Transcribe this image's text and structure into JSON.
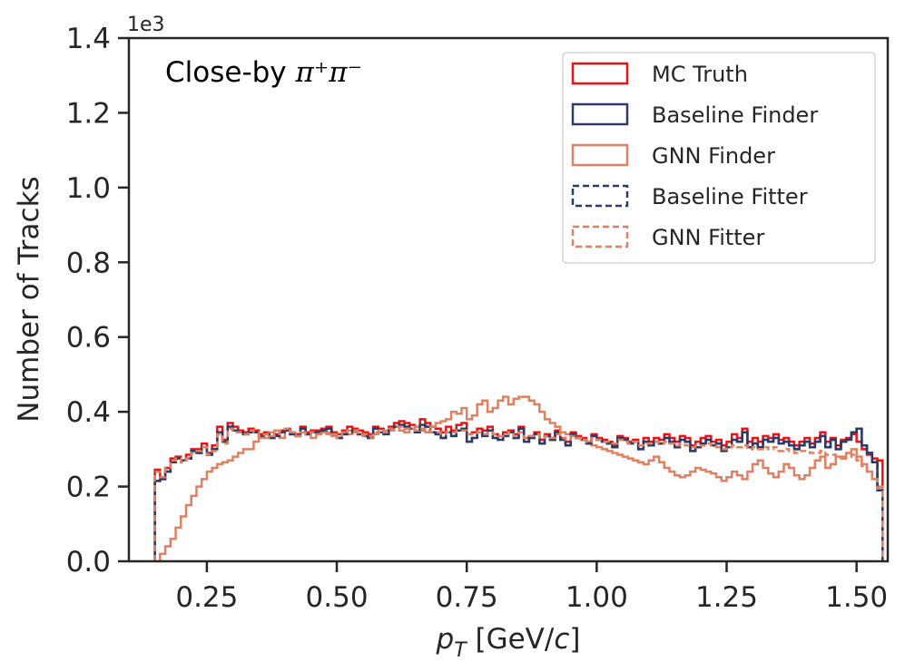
{
  "chart_data": {
    "type": "step-histogram",
    "title": "",
    "annotation_prefix": "Close-by ",
    "annotation_math": "π⁺π⁻",
    "xlabel_base": "p",
    "xlabel_sub": "T",
    "xlabel_unit_prefix": " [GeV/",
    "xlabel_unit_var": "c",
    "xlabel_unit_suffix": "]",
    "ylabel": "Number of Tracks",
    "y_offset_text": "1e3",
    "xlim": [
      0.1,
      1.56
    ],
    "ylim": [
      0,
      1400
    ],
    "x_ticks": [
      0.25,
      0.5,
      0.75,
      1.0,
      1.25,
      1.5
    ],
    "x_tick_labels": [
      "0.25",
      "0.50",
      "0.75",
      "1.00",
      "1.25",
      "1.50"
    ],
    "y_ticks": [
      0,
      200,
      400,
      600,
      800,
      1000,
      1200,
      1400
    ],
    "y_tick_labels": [
      "0.0",
      "0.2",
      "0.4",
      "0.6",
      "0.8",
      "1.0",
      "1.2",
      "1.4"
    ],
    "bin_start": 0.15,
    "bin_end": 1.5,
    "bin_width": 0.01,
    "legend_position": "top-right",
    "series": [
      {
        "name": "MC Truth",
        "color": "#ee1111",
        "dashed": false,
        "width": 2.5,
        "values": [
          245,
          225,
          250,
          275,
          280,
          270,
          285,
          300,
          300,
          315,
          290,
          310,
          360,
          325,
          370,
          360,
          350,
          345,
          355,
          350,
          340,
          345,
          335,
          340,
          350,
          355,
          345,
          340,
          360,
          345,
          350,
          350,
          355,
          360,
          345,
          340,
          350,
          360,
          355,
          350,
          345,
          340,
          360,
          355,
          350,
          360,
          370,
          375,
          370,
          365,
          360,
          380,
          370,
          360,
          355,
          345,
          360,
          350,
          365,
          370,
          340,
          345,
          355,
          350,
          360,
          340,
          335,
          345,
          350,
          340,
          360,
          330,
          335,
          345,
          325,
          340,
          330,
          350,
          330,
          320,
          345,
          335,
          330,
          320,
          340,
          330,
          325,
          320,
          310,
          335,
          330,
          320,
          325,
          310,
          330,
          320,
          330,
          325,
          340,
          330,
          320,
          335,
          330,
          310,
          320,
          330,
          335,
          320,
          325,
          310,
          320,
          340,
          330,
          355,
          320,
          330,
          320,
          335,
          330,
          340,
          325,
          330,
          320,
          310,
          320,
          330,
          315,
          330,
          345,
          320,
          330,
          310,
          325,
          330,
          340,
          320,
          300,
          285,
          275,
          270
        ]
      },
      {
        "name": "Baseline Finder",
        "color": "#2b3a67",
        "dashed": false,
        "width": 2.5,
        "values": [
          215,
          220,
          240,
          265,
          275,
          270,
          275,
          295,
          290,
          305,
          285,
          300,
          345,
          320,
          360,
          350,
          345,
          340,
          345,
          345,
          335,
          340,
          330,
          335,
          345,
          350,
          340,
          335,
          355,
          340,
          345,
          345,
          350,
          355,
          340,
          330,
          340,
          350,
          345,
          340,
          335,
          330,
          355,
          345,
          340,
          350,
          360,
          365,
          360,
          355,
          345,
          365,
          360,
          345,
          340,
          330,
          345,
          335,
          350,
          355,
          320,
          330,
          345,
          335,
          350,
          330,
          325,
          335,
          345,
          330,
          355,
          320,
          330,
          340,
          315,
          335,
          325,
          345,
          325,
          310,
          340,
          330,
          325,
          315,
          335,
          325,
          320,
          315,
          305,
          330,
          325,
          315,
          320,
          300,
          320,
          310,
          320,
          315,
          330,
          320,
          305,
          325,
          320,
          295,
          305,
          315,
          325,
          310,
          315,
          295,
          305,
          325,
          320,
          345,
          305,
          315,
          305,
          325,
          320,
          330,
          315,
          320,
          310,
          300,
          310,
          320,
          305,
          320,
          335,
          305,
          325,
          300,
          320,
          325,
          345,
          355,
          310,
          290,
          265,
          190
        ]
      },
      {
        "name": "GNN Finder",
        "color": "#e08060",
        "dashed": false,
        "width": 2.5,
        "values": [
          0,
          20,
          40,
          60,
          90,
          120,
          150,
          175,
          200,
          220,
          240,
          250,
          260,
          265,
          270,
          280,
          290,
          300,
          300,
          320,
          330,
          330,
          345,
          350,
          330,
          350,
          340,
          335,
          345,
          340,
          330,
          340,
          345,
          340,
          335,
          330,
          345,
          340,
          350,
          340,
          335,
          330,
          340,
          345,
          350,
          355,
          360,
          350,
          345,
          355,
          360,
          350,
          345,
          360,
          370,
          375,
          380,
          400,
          395,
          410,
          380,
          390,
          420,
          430,
          400,
          410,
          430,
          440,
          420,
          435,
          440,
          440,
          430,
          420,
          400,
          380,
          370,
          360,
          345,
          340,
          335,
          330,
          325,
          320,
          310,
          305,
          300,
          295,
          290,
          285,
          280,
          275,
          270,
          265,
          260,
          270,
          280,
          265,
          250,
          240,
          230,
          225,
          230,
          240,
          250,
          245,
          240,
          235,
          225,
          215,
          225,
          240,
          230,
          220,
          240,
          260,
          270,
          250,
          235,
          225,
          240,
          260,
          250,
          230,
          220,
          230,
          250,
          270,
          280,
          250,
          260,
          280,
          275,
          290,
          300,
          280,
          260,
          240,
          220,
          200
        ]
      },
      {
        "name": "Baseline Fitter",
        "color": "#2b3a67",
        "dashed": true,
        "width": 2.5,
        "values": [
          215,
          220,
          240,
          265,
          275,
          270,
          275,
          295,
          290,
          305,
          285,
          300,
          345,
          320,
          360,
          350,
          345,
          340,
          345,
          345,
          335,
          340,
          330,
          335,
          345,
          350,
          340,
          335,
          355,
          340,
          345,
          345,
          350,
          355,
          340,
          330,
          340,
          350,
          345,
          340,
          335,
          330,
          355,
          345,
          340,
          350,
          360,
          365,
          360,
          355,
          345,
          365,
          360,
          345,
          340,
          330,
          345,
          335,
          350,
          355,
          320,
          330,
          345,
          335,
          350,
          330,
          325,
          335,
          345,
          330,
          355,
          320,
          330,
          340,
          315,
          335,
          325,
          345,
          325,
          310,
          340,
          330,
          325,
          315,
          335,
          325,
          320,
          315,
          305,
          330,
          325,
          315,
          320,
          300,
          320,
          310,
          320,
          315,
          330,
          320,
          305,
          325,
          320,
          295,
          305,
          315,
          325,
          310,
          315,
          295,
          305,
          325,
          320,
          345,
          305,
          315,
          305,
          325,
          320,
          330,
          315,
          320,
          310,
          300,
          310,
          320,
          305,
          320,
          335,
          305,
          325,
          300,
          320,
          325,
          345,
          355,
          310,
          290,
          265,
          190
        ]
      },
      {
        "name": "GNN Fitter",
        "color": "#e08060",
        "dashed": true,
        "width": 2.5,
        "values": [
          240,
          225,
          250,
          270,
          275,
          265,
          275,
          290,
          295,
          305,
          285,
          295,
          340,
          315,
          355,
          345,
          345,
          340,
          350,
          345,
          335,
          340,
          335,
          340,
          350,
          355,
          345,
          335,
          345,
          340,
          345,
          340,
          345,
          345,
          340,
          335,
          345,
          350,
          345,
          340,
          340,
          335,
          345,
          350,
          345,
          350,
          360,
          360,
          355,
          355,
          350,
          355,
          350,
          345,
          345,
          340,
          345,
          345,
          350,
          350,
          340,
          340,
          345,
          340,
          345,
          340,
          335,
          340,
          345,
          335,
          345,
          330,
          335,
          340,
          330,
          335,
          330,
          340,
          330,
          325,
          335,
          330,
          325,
          320,
          330,
          325,
          320,
          320,
          315,
          325,
          320,
          315,
          320,
          310,
          315,
          315,
          320,
          315,
          320,
          315,
          310,
          315,
          310,
          305,
          310,
          310,
          315,
          310,
          305,
          300,
          305,
          310,
          305,
          310,
          300,
          305,
          300,
          305,
          300,
          305,
          295,
          300,
          295,
          290,
          295,
          295,
          290,
          290,
          295,
          285,
          285,
          280,
          280,
          280,
          285,
          270,
          255,
          240,
          220,
          195
        ]
      }
    ]
  }
}
